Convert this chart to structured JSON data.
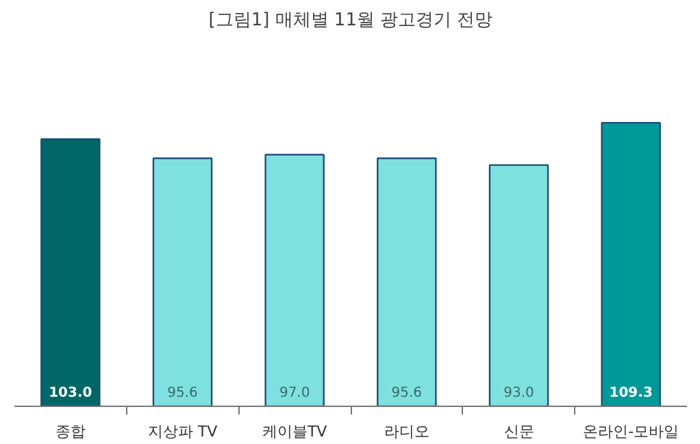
{
  "chart_data": {
    "type": "bar",
    "title": "[그림1] 매체별 11월 광고경기 전망",
    "categories": [
      "종합",
      "지상파 TV",
      "케이블TV",
      "라디오",
      "신문",
      "온라인-모바일"
    ],
    "values": [
      103.0,
      95.6,
      97.0,
      95.6,
      93.0,
      109.3
    ],
    "value_labels": [
      "103.0",
      "95.6",
      "97.0",
      "95.6",
      "93.0",
      "109.3"
    ],
    "colors": [
      "#006666",
      "#7fe0e0",
      "#7fe0e0",
      "#7fe0e0",
      "#7fe0e0",
      "#009999"
    ],
    "grid": false
  }
}
